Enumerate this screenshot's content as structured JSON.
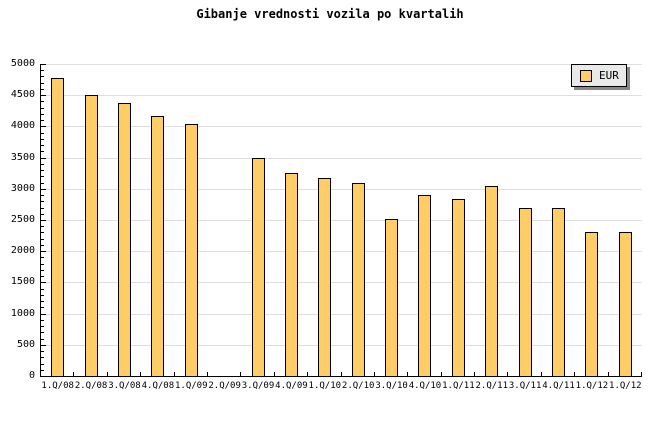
{
  "title": "Gibanje vrednosti vozila po kvartalih",
  "legend": {
    "label": "EUR"
  },
  "colors": {
    "background": "#FFFFFF",
    "bar_fill": "#FFCC66",
    "bar_border": "#000000",
    "grid": "#DEDEDE",
    "axis": "#000000",
    "legend_bg": "#E9E9E9",
    "legend_shadow": "#888888"
  },
  "chart_data": {
    "type": "bar",
    "title": "Gibanje vrednosti vozila po kvartalih",
    "categories": [
      "1.Q/08",
      "2.Q/08",
      "3.Q/08",
      "4.Q/08",
      "1.Q/09",
      "2.Q/09",
      "3.Q/09",
      "4.Q/09",
      "1.Q/10",
      "2.Q/10",
      "3.Q/10",
      "4.Q/10",
      "1.Q/11",
      "2.Q/11",
      "3.Q/11",
      "4.Q/11",
      "1.Q/12",
      "1.Q/12"
    ],
    "series": [
      {
        "name": "EUR",
        "color": "#FFCC66",
        "values": [
          4775,
          4500,
          4370,
          4160,
          4040,
          null,
          3500,
          3250,
          3170,
          3100,
          2520,
          2900,
          2840,
          3050,
          2700,
          2700,
          2310,
          2310
        ]
      }
    ],
    "ylim": [
      0,
      5000
    ],
    "ytick_major": 500,
    "ytick_minor": 100,
    "ytick_labels": [
      "0",
      "500",
      "1000",
      "1500",
      "2000",
      "2500",
      "3000",
      "3500",
      "4000",
      "4500",
      "5000"
    ],
    "xlabel": "",
    "ylabel": "",
    "grid": "horizontal-major",
    "legend_position": "top-right"
  }
}
